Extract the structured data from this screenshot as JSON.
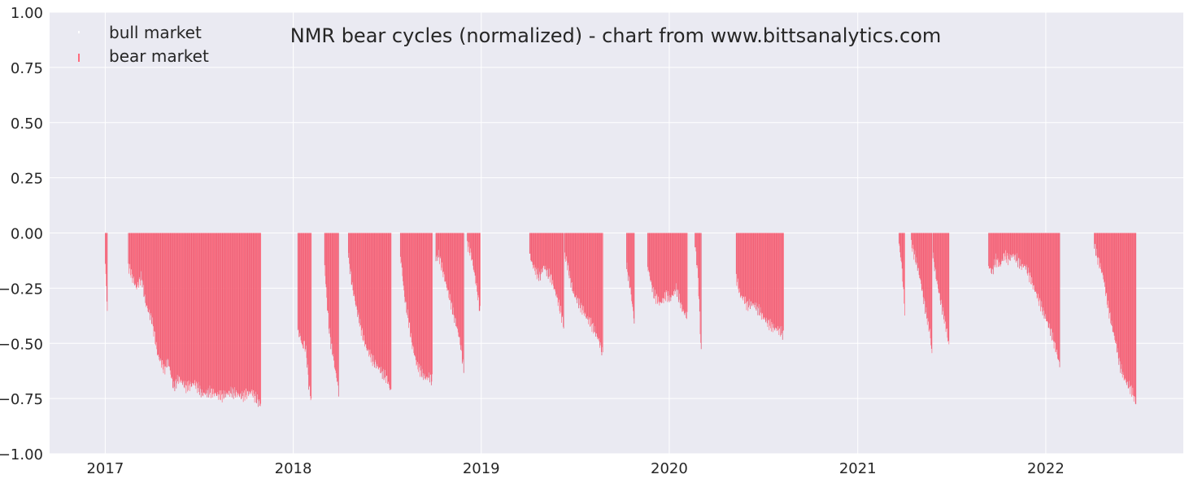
{
  "chart_data": {
    "type": "bar",
    "title": "NMR bear cycles (normalized)  - chart from www.bittsanalytics.com",
    "xlabel": "",
    "ylabel": "",
    "xlim": [
      "2016-09-15",
      "2022-09-25"
    ],
    "ylim": [
      -1.0,
      1.0
    ],
    "y_ticks": [
      1.0,
      0.75,
      0.5,
      0.25,
      0.0,
      -0.25,
      -0.5,
      -0.75,
      -1.0
    ],
    "y_tick_labels": [
      "1.00",
      "0.75",
      "0.50",
      "0.25",
      "0.00",
      "−0.25",
      "−0.50",
      "−0.75",
      "−1.00"
    ],
    "x_ticks": [
      "2017-01-01",
      "2018-01-01",
      "2019-01-01",
      "2020-01-01",
      "2021-01-01",
      "2022-01-01"
    ],
    "x_tick_labels": [
      "2017",
      "2018",
      "2019",
      "2020",
      "2021",
      "2022"
    ],
    "grid": true,
    "legend": {
      "placement": "top-left",
      "entries": [
        {
          "label": "bull market",
          "color": "#ffffff"
        },
        {
          "label": "bear market",
          "color": "#ff6b7d"
        }
      ]
    },
    "colors": {
      "background": "#eaeaf2",
      "grid": "#ffffff",
      "bear": "#ff6b7d",
      "bear_dark": "#e0506a"
    },
    "series": [
      {
        "name": "bear market",
        "segments": [
          {
            "start": "2017-01-01",
            "end": "2017-01-05",
            "points": [
              [
                0,
                -0.14
              ],
              [
                1,
                -0.35
              ]
            ]
          },
          {
            "start": "2017-02-15",
            "end": "2017-10-30",
            "points": [
              [
                0,
                -0.15
              ],
              [
                0.06,
                -0.25
              ],
              [
                0.1,
                -0.2
              ],
              [
                0.13,
                -0.32
              ],
              [
                0.18,
                -0.4
              ],
              [
                0.22,
                -0.55
              ],
              [
                0.27,
                -0.62
              ],
              [
                0.3,
                -0.58
              ],
              [
                0.34,
                -0.7
              ],
              [
                0.38,
                -0.66
              ],
              [
                0.44,
                -0.7
              ],
              [
                0.5,
                -0.68
              ],
              [
                0.56,
                -0.73
              ],
              [
                0.62,
                -0.72
              ],
              [
                0.7,
                -0.74
              ],
              [
                0.78,
                -0.72
              ],
              [
                0.86,
                -0.74
              ],
              [
                0.93,
                -0.72
              ],
              [
                1,
                -0.78
              ]
            ]
          },
          {
            "start": "2018-01-10",
            "end": "2018-02-05",
            "points": [
              [
                0,
                -0.45
              ],
              [
                0.2,
                -0.47
              ],
              [
                0.35,
                -0.52
              ],
              [
                0.5,
                -0.5
              ],
              [
                0.65,
                -0.55
              ],
              [
                0.8,
                -0.68
              ],
              [
                1,
                -0.76
              ]
            ]
          },
          {
            "start": "2018-03-03",
            "end": "2018-03-30",
            "points": [
              [
                0,
                -0.15
              ],
              [
                0.15,
                -0.3
              ],
              [
                0.3,
                -0.42
              ],
              [
                0.45,
                -0.5
              ],
              [
                0.6,
                -0.55
              ],
              [
                0.75,
                -0.62
              ],
              [
                0.88,
                -0.66
              ],
              [
                1,
                -0.72
              ]
            ]
          },
          {
            "start": "2018-04-18",
            "end": "2018-07-10",
            "points": [
              [
                0,
                -0.1
              ],
              [
                0.05,
                -0.18
              ],
              [
                0.1,
                -0.25
              ],
              [
                0.18,
                -0.33
              ],
              [
                0.26,
                -0.4
              ],
              [
                0.34,
                -0.47
              ],
              [
                0.42,
                -0.52
              ],
              [
                0.5,
                -0.55
              ],
              [
                0.58,
                -0.58
              ],
              [
                0.66,
                -0.6
              ],
              [
                0.74,
                -0.62
              ],
              [
                0.82,
                -0.64
              ],
              [
                0.9,
                -0.66
              ],
              [
                1,
                -0.72
              ]
            ]
          },
          {
            "start": "2018-07-28",
            "end": "2018-09-28",
            "points": [
              [
                0,
                -0.1
              ],
              [
                0.06,
                -0.18
              ],
              [
                0.12,
                -0.28
              ],
              [
                0.2,
                -0.35
              ],
              [
                0.28,
                -0.42
              ],
              [
                0.36,
                -0.5
              ],
              [
                0.44,
                -0.55
              ],
              [
                0.52,
                -0.6
              ],
              [
                0.6,
                -0.62
              ],
              [
                0.7,
                -0.64
              ],
              [
                0.8,
                -0.66
              ],
              [
                0.9,
                -0.65
              ],
              [
                1,
                -0.67
              ]
            ]
          },
          {
            "start": "2018-10-05",
            "end": "2018-11-28",
            "points": [
              [
                0,
                -0.12
              ],
              [
                0.1,
                -0.1
              ],
              [
                0.2,
                -0.15
              ],
              [
                0.3,
                -0.2
              ],
              [
                0.4,
                -0.25
              ],
              [
                0.5,
                -0.3
              ],
              [
                0.6,
                -0.35
              ],
              [
                0.7,
                -0.4
              ],
              [
                0.8,
                -0.45
              ],
              [
                0.9,
                -0.52
              ],
              [
                1,
                -0.62
              ]
            ]
          },
          {
            "start": "2018-12-05",
            "end": "2018-12-30",
            "points": [
              [
                0,
                -0.05
              ],
              [
                0.3,
                -0.1
              ],
              [
                0.6,
                -0.2
              ],
              [
                0.8,
                -0.28
              ],
              [
                1,
                -0.36
              ]
            ]
          },
          {
            "start": "2019-04-05",
            "end": "2019-06-10",
            "points": [
              [
                0,
                -0.1
              ],
              [
                0.1,
                -0.15
              ],
              [
                0.2,
                -0.18
              ],
              [
                0.3,
                -0.2
              ],
              [
                0.42,
                -0.15
              ],
              [
                0.52,
                -0.18
              ],
              [
                0.62,
                -0.2
              ],
              [
                0.72,
                -0.25
              ],
              [
                0.82,
                -0.3
              ],
              [
                0.9,
                -0.35
              ],
              [
                1,
                -0.42
              ]
            ]
          },
          {
            "start": "2019-06-12",
            "end": "2019-08-25",
            "points": [
              [
                0,
                -0.1
              ],
              [
                0.08,
                -0.15
              ],
              [
                0.16,
                -0.22
              ],
              [
                0.24,
                -0.28
              ],
              [
                0.32,
                -0.3
              ],
              [
                0.4,
                -0.33
              ],
              [
                0.48,
                -0.35
              ],
              [
                0.56,
                -0.38
              ],
              [
                0.64,
                -0.4
              ],
              [
                0.72,
                -0.42
              ],
              [
                0.8,
                -0.45
              ],
              [
                0.88,
                -0.48
              ],
              [
                1,
                -0.55
              ]
            ]
          },
          {
            "start": "2019-10-10",
            "end": "2019-10-25",
            "points": [
              [
                0,
                -0.15
              ],
              [
                0.5,
                -0.25
              ],
              [
                1,
                -0.4
              ]
            ]
          },
          {
            "start": "2019-11-20",
            "end": "2020-02-05",
            "points": [
              [
                0,
                -0.15
              ],
              [
                0.08,
                -0.22
              ],
              [
                0.16,
                -0.28
              ],
              [
                0.24,
                -0.3
              ],
              [
                0.32,
                -0.32
              ],
              [
                0.4,
                -0.3
              ],
              [
                0.48,
                -0.28
              ],
              [
                0.56,
                -0.3
              ],
              [
                0.64,
                -0.28
              ],
              [
                0.72,
                -0.25
              ],
              [
                0.8,
                -0.3
              ],
              [
                0.88,
                -0.35
              ],
              [
                1,
                -0.38
              ]
            ]
          },
          {
            "start": "2020-02-20",
            "end": "2020-03-03",
            "points": [
              [
                0,
                -0.05
              ],
              [
                0.5,
                -0.2
              ],
              [
                1,
                -0.55
              ]
            ]
          },
          {
            "start": "2020-05-10",
            "end": "2020-08-10",
            "points": [
              [
                0,
                -0.2
              ],
              [
                0.08,
                -0.28
              ],
              [
                0.16,
                -0.3
              ],
              [
                0.24,
                -0.33
              ],
              [
                0.32,
                -0.32
              ],
              [
                0.4,
                -0.33
              ],
              [
                0.48,
                -0.35
              ],
              [
                0.56,
                -0.38
              ],
              [
                0.64,
                -0.4
              ],
              [
                0.72,
                -0.42
              ],
              [
                0.8,
                -0.43
              ],
              [
                0.9,
                -0.44
              ],
              [
                1,
                -0.46
              ]
            ]
          },
          {
            "start": "2021-03-22",
            "end": "2021-04-02",
            "points": [
              [
                0,
                -0.05
              ],
              [
                0.5,
                -0.15
              ],
              [
                1,
                -0.35
              ]
            ]
          },
          {
            "start": "2021-04-15",
            "end": "2021-05-25",
            "points": [
              [
                0,
                -0.05
              ],
              [
                0.15,
                -0.1
              ],
              [
                0.3,
                -0.15
              ],
              [
                0.45,
                -0.22
              ],
              [
                0.6,
                -0.3
              ],
              [
                0.75,
                -0.38
              ],
              [
                0.9,
                -0.45
              ],
              [
                1,
                -0.55
              ]
            ]
          },
          {
            "start": "2021-05-27",
            "end": "2021-06-27",
            "points": [
              [
                0,
                -0.1
              ],
              [
                0.2,
                -0.2
              ],
              [
                0.4,
                -0.28
              ],
              [
                0.6,
                -0.35
              ],
              [
                0.8,
                -0.42
              ],
              [
                1,
                -0.51
              ]
            ]
          },
          {
            "start": "2021-09-12",
            "end": "2022-01-28",
            "points": [
              [
                0,
                -0.15
              ],
              [
                0.05,
                -0.18
              ],
              [
                0.1,
                -0.12
              ],
              [
                0.16,
                -0.15
              ],
              [
                0.22,
                -0.1
              ],
              [
                0.28,
                -0.12
              ],
              [
                0.34,
                -0.1
              ],
              [
                0.4,
                -0.12
              ],
              [
                0.46,
                -0.15
              ],
              [
                0.52,
                -0.15
              ],
              [
                0.58,
                -0.2
              ],
              [
                0.64,
                -0.25
              ],
              [
                0.7,
                -0.3
              ],
              [
                0.76,
                -0.35
              ],
              [
                0.82,
                -0.4
              ],
              [
                0.88,
                -0.45
              ],
              [
                0.94,
                -0.52
              ],
              [
                1,
                -0.6
              ]
            ]
          },
          {
            "start": "2022-04-05",
            "end": "2022-06-25",
            "points": [
              [
                0,
                -0.05
              ],
              [
                0.06,
                -0.1
              ],
              [
                0.14,
                -0.15
              ],
              [
                0.22,
                -0.2
              ],
              [
                0.3,
                -0.3
              ],
              [
                0.38,
                -0.38
              ],
              [
                0.46,
                -0.45
              ],
              [
                0.54,
                -0.52
              ],
              [
                0.62,
                -0.6
              ],
              [
                0.7,
                -0.65
              ],
              [
                0.78,
                -0.68
              ],
              [
                0.86,
                -0.7
              ],
              [
                0.93,
                -0.73
              ],
              [
                1,
                -0.77
              ]
            ]
          }
        ]
      }
    ]
  }
}
